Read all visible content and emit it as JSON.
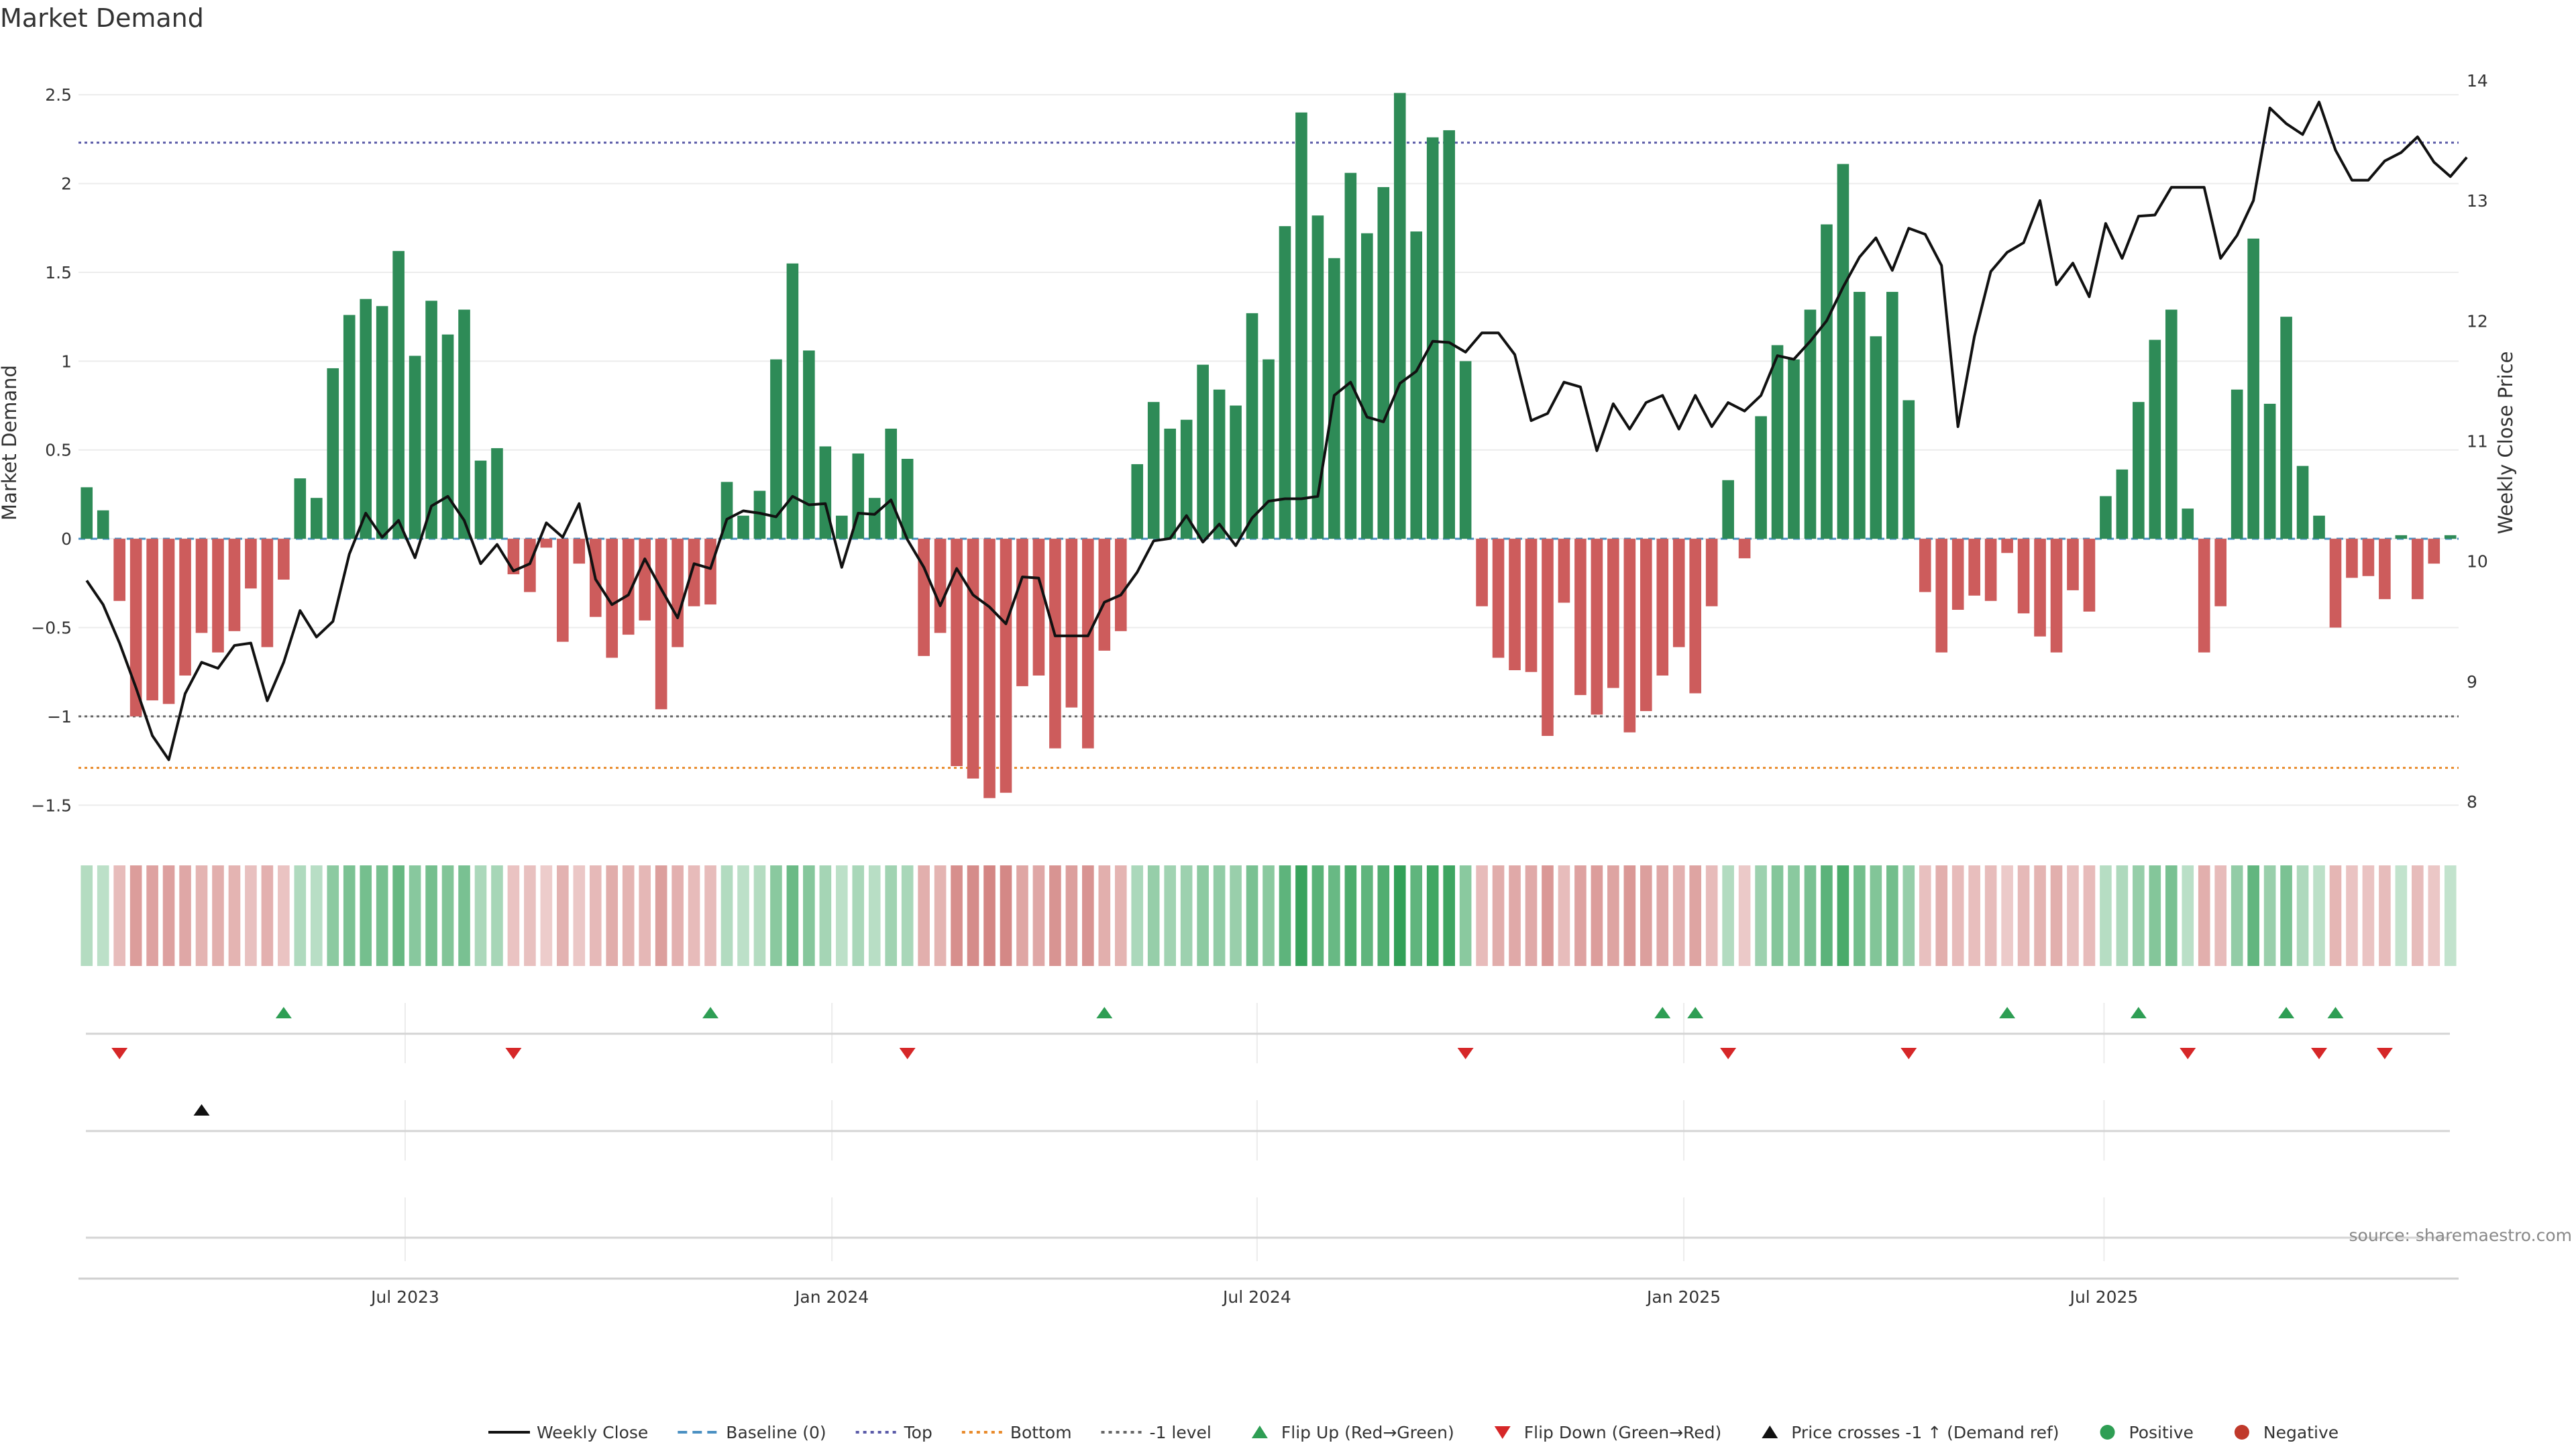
{
  "chart_data": {
    "type": "bar",
    "title": "Market Demand",
    "ylabel": "Market Demand",
    "y2label": "Weekly Close Price",
    "ylim": [
      -1.65,
      2.75
    ],
    "y2lim": [
      7.75,
      14.25
    ],
    "yticks": [
      "2.5",
      "2",
      "1.5",
      "1",
      "0.5",
      "0",
      "−0.5",
      "−1",
      "−1.5"
    ],
    "yticks_values": [
      2.5,
      2,
      1.5,
      1,
      0.5,
      0,
      -0.5,
      -1,
      -1.5
    ],
    "y2ticks": [
      "14",
      "13",
      "12",
      "11",
      "10",
      "9",
      "8"
    ],
    "y2ticks_values": [
      14,
      13,
      12,
      11,
      10,
      9,
      8
    ],
    "xticks": [
      "Jul 2023",
      "Jan 2024",
      "Jul 2024",
      "Jan 2025",
      "Jul 2025"
    ],
    "xticks_weeks": [
      19.4,
      45.4,
      71.3,
      97.3,
      122.9
    ],
    "levels": {
      "top": 2.23,
      "bottom": -1.29,
      "minus_one": -1,
      "baseline": 0
    },
    "demand": [
      0.29,
      0.16,
      -0.35,
      -1.0,
      -0.91,
      -0.93,
      -0.77,
      -0.53,
      -0.64,
      -0.52,
      -0.28,
      -0.61,
      -0.23,
      0.34,
      0.23,
      0.96,
      1.26,
      1.35,
      1.31,
      1.62,
      1.03,
      1.34,
      1.15,
      1.29,
      0.44,
      0.51,
      -0.2,
      -0.3,
      -0.05,
      -0.58,
      -0.14,
      -0.44,
      -0.67,
      -0.54,
      -0.46,
      -0.96,
      -0.61,
      -0.38,
      -0.37,
      0.32,
      0.13,
      0.27,
      1.01,
      1.55,
      1.06,
      0.52,
      0.13,
      0.48,
      0.23,
      0.62,
      0.45,
      -0.66,
      -0.53,
      -1.28,
      -1.35,
      -1.46,
      -1.43,
      -0.83,
      -0.77,
      -1.18,
      -0.95,
      -1.18,
      -0.63,
      -0.52,
      0.42,
      0.77,
      0.62,
      0.67,
      0.98,
      0.84,
      0.75,
      1.27,
      1.01,
      1.76,
      2.4,
      1.82,
      1.58,
      2.06,
      1.72,
      1.98,
      2.51,
      1.73,
      2.26,
      2.3,
      1.0,
      -0.38,
      -0.67,
      -0.74,
      -0.75,
      -1.11,
      -0.36,
      -0.88,
      -0.99,
      -0.84,
      -1.09,
      -0.97,
      -0.77,
      -0.61,
      -0.87,
      -0.38,
      0.33,
      -0.11,
      0.69,
      1.09,
      1.01,
      1.29,
      1.77,
      2.11,
      1.39,
      1.14,
      1.39,
      0.78,
      -0.3,
      -0.64,
      -0.4,
      -0.32,
      -0.35,
      -0.08,
      -0.42,
      -0.55,
      -0.64,
      -0.29,
      -0.41,
      0.24,
      0.39,
      0.77,
      1.12,
      1.29,
      0.17,
      -0.64,
      -0.38,
      0.84,
      1.69,
      0.76,
      1.25,
      0.41,
      0.13,
      -0.5,
      -0.22,
      -0.21,
      -0.34,
      0.02,
      -0.34,
      -0.14,
      0.02
    ],
    "close": [
      9.84,
      9.64,
      9.32,
      8.95,
      8.55,
      8.35,
      8.9,
      9.16,
      9.11,
      9.3,
      9.32,
      8.84,
      9.16,
      9.59,
      9.37,
      9.5,
      10.06,
      10.4,
      10.2,
      10.34,
      10.03,
      10.46,
      10.54,
      10.34,
      9.98,
      10.14,
      9.92,
      9.98,
      10.32,
      10.2,
      10.48,
      9.85,
      9.64,
      9.72,
      10.02,
      9.77,
      9.53,
      9.98,
      9.94,
      10.35,
      10.42,
      10.4,
      10.37,
      10.54,
      10.47,
      10.48,
      9.95,
      10.4,
      10.39,
      10.51,
      10.18,
      9.95,
      9.63,
      9.94,
      9.72,
      9.62,
      9.48,
      9.87,
      9.86,
      9.38,
      9.38,
      9.38,
      9.66,
      9.72,
      9.91,
      10.17,
      10.19,
      10.38,
      10.16,
      10.31,
      10.13,
      10.36,
      10.5,
      10.52,
      10.52,
      10.54,
      11.38,
      11.49,
      11.2,
      11.16,
      11.48,
      11.58,
      11.83,
      11.82,
      11.74,
      11.9,
      11.9,
      11.72,
      11.17,
      11.23,
      11.49,
      11.45,
      10.92,
      11.31,
      11.1,
      11.32,
      11.38,
      11.1,
      11.38,
      11.12,
      11.32,
      11.25,
      11.38,
      11.71,
      11.68,
      11.83,
      12.0,
      12.28,
      12.53,
      12.69,
      12.42,
      12.77,
      12.72,
      12.46,
      11.12,
      11.87,
      12.41,
      12.57,
      12.65,
      13.0,
      12.3,
      12.48,
      12.2,
      12.81,
      12.52,
      12.87,
      12.88,
      13.11,
      13.11,
      13.11,
      12.52,
      12.71,
      13.0,
      13.77,
      13.64,
      13.55,
      13.82,
      13.42,
      13.17,
      13.17,
      13.33,
      13.4,
      13.53,
      13.32,
      13.2,
      13.36
    ],
    "flip_up_weeks": [
      12,
      38,
      62,
      96,
      98,
      117,
      125,
      134,
      137
    ],
    "flip_down_weeks": [
      2,
      26,
      50,
      84,
      100,
      111,
      128,
      136,
      140
    ],
    "price_cross_weeks": [
      7
    ],
    "source": "source: sharemaestro.com",
    "legend": [
      {
        "label": "Weekly Close",
        "kind": "line",
        "color": "#111111"
      },
      {
        "label": "Baseline (0)",
        "kind": "dash",
        "color": "#4a90c2"
      },
      {
        "label": "Top",
        "kind": "dot",
        "color": "#5a5aa8"
      },
      {
        "label": "Bottom",
        "kind": "dot",
        "color": "#e88a2a"
      },
      {
        "label": "-1 level",
        "kind": "dot",
        "color": "#666666"
      },
      {
        "label": "Flip Up (Red→Green)",
        "kind": "triup",
        "color": "#2e9e54"
      },
      {
        "label": "Flip Down (Green→Red)",
        "kind": "tridown",
        "color": "#d62728"
      },
      {
        "label": "Price crosses -1 ↑ (Demand ref)",
        "kind": "triup",
        "color": "#111111"
      },
      {
        "label": "Positive",
        "kind": "circle",
        "color": "#2e9e54"
      },
      {
        "label": "Negative",
        "kind": "circle",
        "color": "#c0392b"
      }
    ],
    "colors": {
      "positive": "#2e8b57",
      "negative": "#cd5c5c",
      "heat_pos": "#2e9e54",
      "heat_neg": "#c0504d"
    }
  }
}
